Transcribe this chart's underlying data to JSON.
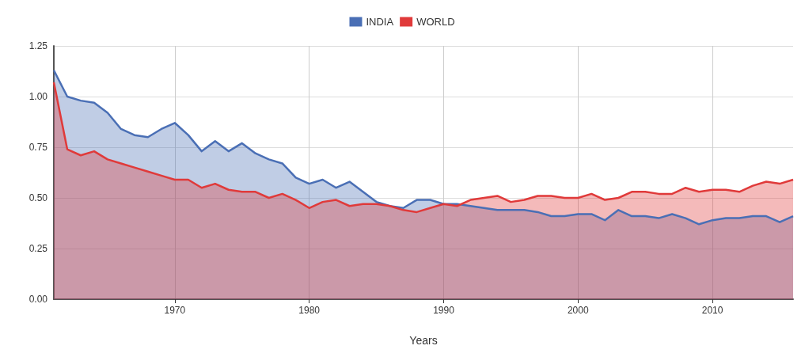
{
  "chart_data": {
    "type": "area",
    "xlabel": "Years",
    "legend": "top",
    "grid": true,
    "marker": "none",
    "xlim": [
      1961,
      2016
    ],
    "xticks": [
      1970,
      1980,
      1990,
      2000,
      2010
    ],
    "ylim": [
      0,
      1.25
    ],
    "yticks": [
      {
        "value": 0,
        "label": "0.00"
      },
      {
        "value": 0.25,
        "label": "0.25"
      },
      {
        "value": 0.5,
        "label": "0.50"
      },
      {
        "value": 0.75,
        "label": "0.75"
      },
      {
        "value": 1,
        "label": "1.00"
      },
      {
        "value": 1.25,
        "label": "1.25"
      }
    ],
    "x": [
      1961,
      1962,
      1963,
      1964,
      1965,
      1966,
      1967,
      1968,
      1969,
      1970,
      1971,
      1972,
      1973,
      1974,
      1975,
      1976,
      1977,
      1978,
      1979,
      1980,
      1981,
      1982,
      1983,
      1984,
      1985,
      1986,
      1987,
      1988,
      1989,
      1990,
      1991,
      1992,
      1993,
      1994,
      1995,
      1996,
      1997,
      1998,
      1999,
      2000,
      2001,
      2002,
      2003,
      2004,
      2005,
      2006,
      2007,
      2008,
      2009,
      2010,
      2011,
      2012,
      2013,
      2014,
      2015,
      2016
    ],
    "series": [
      {
        "name": "INDIA",
        "color": "#4a6fb5",
        "values": [
          1.13,
          1.0,
          0.98,
          0.97,
          0.92,
          0.84,
          0.81,
          0.8,
          0.84,
          0.87,
          0.81,
          0.73,
          0.78,
          0.73,
          0.77,
          0.72,
          0.69,
          0.67,
          0.6,
          0.57,
          0.59,
          0.55,
          0.58,
          0.53,
          0.48,
          0.46,
          0.45,
          0.49,
          0.49,
          0.47,
          0.47,
          0.46,
          0.45,
          0.44,
          0.44,
          0.44,
          0.43,
          0.41,
          0.41,
          0.42,
          0.42,
          0.39,
          0.44,
          0.41,
          0.41,
          0.4,
          0.42,
          0.4,
          0.37,
          0.39,
          0.4,
          0.4,
          0.41,
          0.41,
          0.38,
          0.41
        ]
      },
      {
        "name": "WORLD",
        "color": "#e03a3a",
        "values": [
          1.07,
          0.74,
          0.71,
          0.73,
          0.69,
          0.67,
          0.65,
          0.63,
          0.61,
          0.59,
          0.59,
          0.55,
          0.57,
          0.54,
          0.53,
          0.53,
          0.5,
          0.52,
          0.49,
          0.45,
          0.48,
          0.49,
          0.46,
          0.47,
          0.47,
          0.46,
          0.44,
          0.43,
          0.45,
          0.47,
          0.46,
          0.49,
          0.5,
          0.51,
          0.48,
          0.49,
          0.51,
          0.51,
          0.5,
          0.5,
          0.52,
          0.49,
          0.5,
          0.53,
          0.53,
          0.52,
          0.52,
          0.55,
          0.53,
          0.54,
          0.54,
          0.53,
          0.56,
          0.58,
          0.57,
          0.59
        ]
      }
    ]
  }
}
